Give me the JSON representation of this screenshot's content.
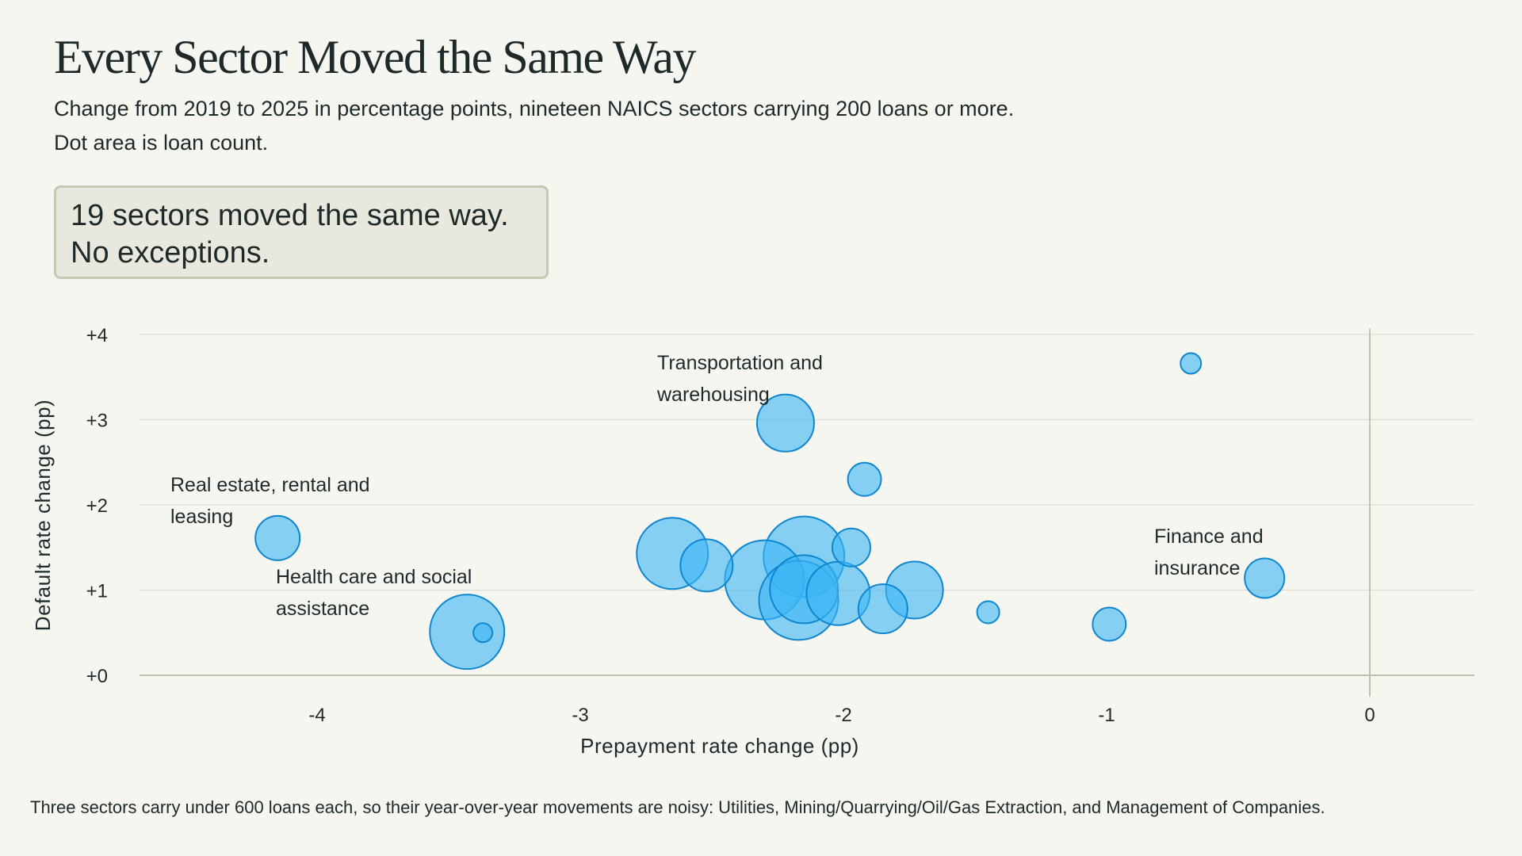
{
  "title": "Every Sector Moved the Same Way",
  "subtitle_line1": "Change from 2019 to 2025 in percentage points, nineteen NAICS sectors carrying 200 loans or more.",
  "subtitle_line2": "Dot area is loan count.",
  "callout_line1": "19 sectors moved the same way.",
  "callout_line2": "No exceptions.",
  "footnote": "Three sectors carry under 600 loans each, so their year-over-year movements are noisy: Utilities, Mining/Quarrying/Oil/Gas Extraction, and Management of Companies.",
  "colors": {
    "background": "#f6f6f0",
    "dot_fill": "#3bb5f5",
    "dot_stroke": "#0f86cf",
    "grid": "#e0e0d8",
    "axis": "#bfc2b0",
    "text": "#1e2a2a"
  },
  "chart_data": {
    "type": "scatter",
    "title": "Every Sector Moved the Same Way",
    "xlabel": "Prepayment rate change (pp)",
    "ylabel": "Default rate change (pp)",
    "xlim": [
      -4.5,
      0.4
    ],
    "ylim": [
      0,
      4
    ],
    "x_ticks": [
      -4,
      -3,
      -2,
      -1,
      0
    ],
    "x_tick_labels": [
      "-4",
      "-3",
      "-2",
      "-1",
      "0"
    ],
    "y_ticks": [
      0,
      1,
      2,
      3,
      4
    ],
    "y_tick_labels": [
      "+0",
      "+1",
      "+2",
      "+3",
      "+4"
    ],
    "grid": "horizontal",
    "size_encoding": "loan count (dot area)",
    "points": [
      {
        "x": -4.15,
        "y": 1.61,
        "r": 28,
        "label": "Real estate, rental and leasing"
      },
      {
        "x": -3.43,
        "y": 0.51,
        "r": 47,
        "label": "Health care and social assistance"
      },
      {
        "x": -3.37,
        "y": 0.5,
        "r": 12,
        "label": ""
      },
      {
        "x": -2.22,
        "y": 2.96,
        "r": 36,
        "label": "Transportation and warehousing"
      },
      {
        "x": -1.92,
        "y": 2.3,
        "r": 21,
        "label": ""
      },
      {
        "x": -2.65,
        "y": 1.43,
        "r": 45,
        "label": ""
      },
      {
        "x": -2.52,
        "y": 1.29,
        "r": 33,
        "label": ""
      },
      {
        "x": -2.3,
        "y": 1.12,
        "r": 50,
        "label": ""
      },
      {
        "x": -2.15,
        "y": 1.39,
        "r": 51,
        "label": ""
      },
      {
        "x": -1.97,
        "y": 1.5,
        "r": 24,
        "label": ""
      },
      {
        "x": -2.17,
        "y": 0.88,
        "r": 50,
        "label": ""
      },
      {
        "x": -2.15,
        "y": 1.01,
        "r": 43,
        "label": ""
      },
      {
        "x": -2.02,
        "y": 0.96,
        "r": 40,
        "label": ""
      },
      {
        "x": -1.85,
        "y": 0.78,
        "r": 31,
        "label": ""
      },
      {
        "x": -1.73,
        "y": 1.0,
        "r": 36,
        "label": ""
      },
      {
        "x": -1.45,
        "y": 0.74,
        "r": 14,
        "label": ""
      },
      {
        "x": -0.99,
        "y": 0.6,
        "r": 21,
        "label": ""
      },
      {
        "x": -0.68,
        "y": 3.66,
        "r": 13,
        "label": ""
      },
      {
        "x": -0.4,
        "y": 1.14,
        "r": 25,
        "label": "Finance and insurance"
      }
    ]
  }
}
